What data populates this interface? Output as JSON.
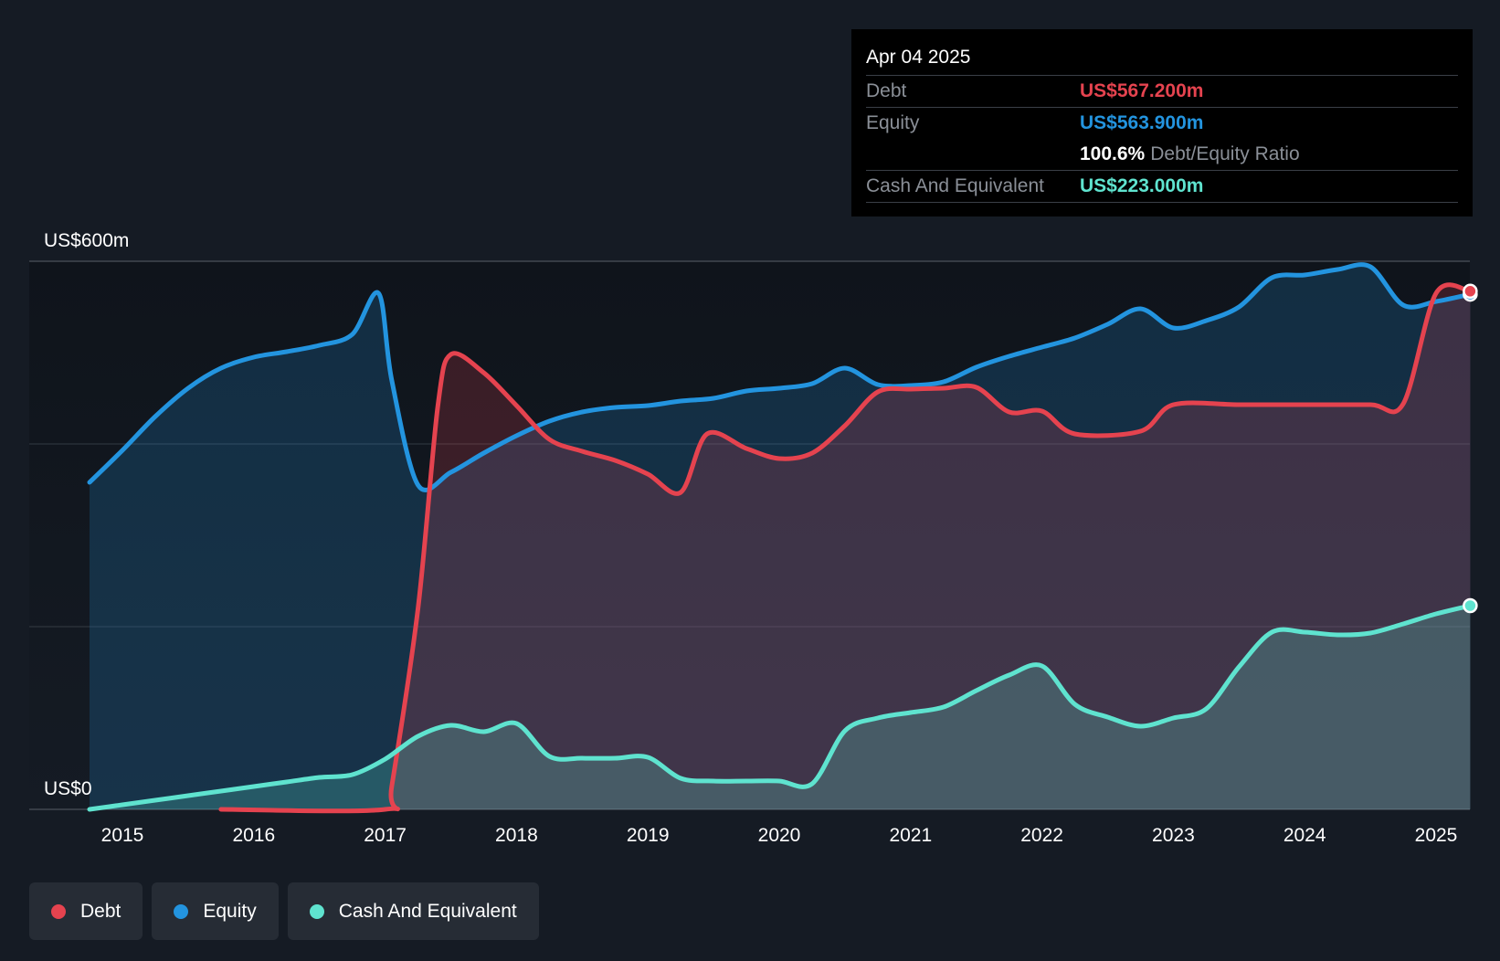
{
  "tooltip": {
    "date": "Apr 04 2025",
    "debt_label": "Debt",
    "debt_value": "US$567.200m",
    "equity_label": "Equity",
    "equity_value": "US$563.900m",
    "ratio_value": "100.6%",
    "ratio_label": "Debt/Equity Ratio",
    "cash_label": "Cash And Equivalent",
    "cash_value": "US$223.000m"
  },
  "legend": [
    {
      "label": "Debt",
      "color": "#e5434f"
    },
    {
      "label": "Equity",
      "color": "#2394df"
    },
    {
      "label": "Cash And Equivalent",
      "color": "#5fe3cf"
    }
  ],
  "chart_data": {
    "type": "area",
    "y_axis_labels": [
      "US$600m",
      "US$0"
    ],
    "ylim": [
      0,
      600
    ],
    "xlim": [
      2014.75,
      2025.26
    ],
    "x_ticks": [
      "2015",
      "2016",
      "2017",
      "2018",
      "2019",
      "2020",
      "2021",
      "2022",
      "2023",
      "2024",
      "2025"
    ],
    "grid": true,
    "legend_position": "bottom-left",
    "series": [
      {
        "name": "Debt",
        "color": "#e5434f",
        "points": [
          [
            2015.75,
            0
          ],
          [
            2017.0,
            0
          ],
          [
            2017.05,
            25
          ],
          [
            2017.25,
            220
          ],
          [
            2017.4,
            440
          ],
          [
            2017.5,
            498
          ],
          [
            2017.75,
            478
          ],
          [
            2018.0,
            442
          ],
          [
            2018.25,
            405
          ],
          [
            2018.5,
            392
          ],
          [
            2018.75,
            382
          ],
          [
            2019.0,
            367
          ],
          [
            2019.25,
            347
          ],
          [
            2019.45,
            411
          ],
          [
            2019.75,
            395
          ],
          [
            2020.0,
            384
          ],
          [
            2020.25,
            390
          ],
          [
            2020.5,
            420
          ],
          [
            2020.75,
            457
          ],
          [
            2021.0,
            460
          ],
          [
            2021.25,
            461
          ],
          [
            2021.5,
            462
          ],
          [
            2021.75,
            435
          ],
          [
            2022.0,
            436
          ],
          [
            2022.25,
            411
          ],
          [
            2022.75,
            414
          ],
          [
            2023.0,
            443
          ],
          [
            2023.5,
            443
          ],
          [
            2024.0,
            443
          ],
          [
            2024.5,
            443
          ],
          [
            2024.75,
            444
          ],
          [
            2025.0,
            565
          ],
          [
            2025.26,
            567.2
          ]
        ]
      },
      {
        "name": "Equity",
        "color": "#2394df",
        "points": [
          [
            2014.75,
            358
          ],
          [
            2015.0,
            393
          ],
          [
            2015.25,
            430
          ],
          [
            2015.5,
            461
          ],
          [
            2015.75,
            483
          ],
          [
            2016.0,
            495
          ],
          [
            2016.25,
            501
          ],
          [
            2016.5,
            508
          ],
          [
            2016.75,
            520
          ],
          [
            2016.95,
            565
          ],
          [
            2017.05,
            470
          ],
          [
            2017.25,
            355
          ],
          [
            2017.5,
            369
          ],
          [
            2017.75,
            390
          ],
          [
            2018.0,
            409
          ],
          [
            2018.25,
            425
          ],
          [
            2018.5,
            435
          ],
          [
            2018.75,
            440
          ],
          [
            2019.0,
            442
          ],
          [
            2019.25,
            447
          ],
          [
            2019.5,
            450
          ],
          [
            2019.75,
            458
          ],
          [
            2020.0,
            461
          ],
          [
            2020.25,
            466
          ],
          [
            2020.5,
            483
          ],
          [
            2020.75,
            465
          ],
          [
            2021.0,
            464
          ],
          [
            2021.25,
            468
          ],
          [
            2021.5,
            484
          ],
          [
            2021.75,
            496
          ],
          [
            2022.0,
            506
          ],
          [
            2022.25,
            516
          ],
          [
            2022.5,
            531
          ],
          [
            2022.75,
            548
          ],
          [
            2023.0,
            527
          ],
          [
            2023.25,
            535
          ],
          [
            2023.5,
            550
          ],
          [
            2023.75,
            582
          ],
          [
            2024.0,
            585
          ],
          [
            2024.25,
            591
          ],
          [
            2024.5,
            594
          ],
          [
            2024.75,
            552
          ],
          [
            2025.0,
            556
          ],
          [
            2025.26,
            563.9
          ]
        ]
      },
      {
        "name": "Cash And Equivalent",
        "color": "#5fe3cf",
        "points": [
          [
            2014.75,
            0
          ],
          [
            2015.0,
            5
          ],
          [
            2015.25,
            10
          ],
          [
            2015.5,
            15
          ],
          [
            2015.75,
            20
          ],
          [
            2016.0,
            25
          ],
          [
            2016.25,
            30
          ],
          [
            2016.5,
            35
          ],
          [
            2016.75,
            38
          ],
          [
            2017.0,
            55
          ],
          [
            2017.25,
            80
          ],
          [
            2017.5,
            92
          ],
          [
            2017.75,
            85
          ],
          [
            2018.0,
            94
          ],
          [
            2018.25,
            58
          ],
          [
            2018.5,
            56
          ],
          [
            2018.75,
            56
          ],
          [
            2019.0,
            57
          ],
          [
            2019.25,
            34
          ],
          [
            2019.5,
            31
          ],
          [
            2019.75,
            31
          ],
          [
            2020.0,
            31
          ],
          [
            2020.25,
            28
          ],
          [
            2020.5,
            86
          ],
          [
            2020.75,
            100
          ],
          [
            2021.0,
            106
          ],
          [
            2021.25,
            112
          ],
          [
            2021.5,
            130
          ],
          [
            2021.75,
            147
          ],
          [
            2022.0,
            157
          ],
          [
            2022.25,
            115
          ],
          [
            2022.5,
            101
          ],
          [
            2022.75,
            91
          ],
          [
            2023.0,
            100
          ],
          [
            2023.25,
            110
          ],
          [
            2023.5,
            156
          ],
          [
            2023.75,
            194
          ],
          [
            2024.0,
            194
          ],
          [
            2024.25,
            191
          ],
          [
            2024.5,
            193
          ],
          [
            2024.75,
            203
          ],
          [
            2025.0,
            214
          ],
          [
            2025.26,
            223
          ]
        ]
      }
    ]
  }
}
